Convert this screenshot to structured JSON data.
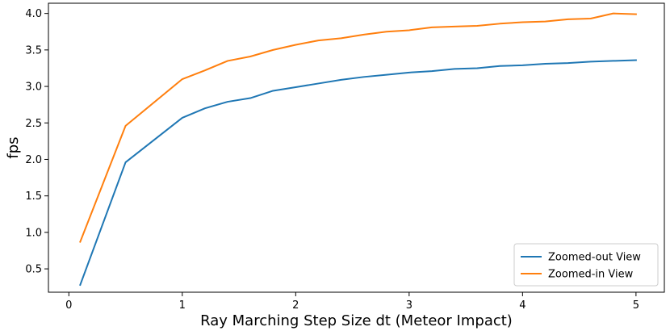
{
  "chart_data": {
    "type": "line",
    "title": "",
    "xlabel": "Ray Marching Step Size dt (Meteor Impact)",
    "ylabel": "fps",
    "xlim": [
      -0.18,
      5.25
    ],
    "ylim": [
      0.18,
      4.14
    ],
    "xticks": [
      0,
      1,
      2,
      3,
      4,
      5
    ],
    "yticks": [
      0.5,
      1.0,
      1.5,
      2.0,
      2.5,
      3.0,
      3.5,
      4.0
    ],
    "xtick_labels": [
      "0",
      "1",
      "2",
      "3",
      "4",
      "5"
    ],
    "ytick_labels": [
      "0.5",
      "1.0",
      "1.5",
      "2.0",
      "2.5",
      "3.0",
      "3.5",
      "4.0"
    ],
    "grid": false,
    "legend_position": "lower-right",
    "x": [
      0.1,
      0.5,
      1.0,
      1.2,
      1.4,
      1.6,
      1.8,
      2.0,
      2.2,
      2.4,
      2.6,
      2.8,
      3.0,
      3.2,
      3.4,
      3.6,
      3.8,
      4.0,
      4.2,
      4.4,
      4.6,
      4.8,
      5.0
    ],
    "series": [
      {
        "name": "Zoomed-out View",
        "color": "#1f77b4",
        "values": [
          0.28,
          1.96,
          2.57,
          2.7,
          2.79,
          2.84,
          2.94,
          2.99,
          3.04,
          3.09,
          3.13,
          3.16,
          3.19,
          3.21,
          3.24,
          3.25,
          3.28,
          3.29,
          3.31,
          3.32,
          3.34,
          3.35,
          3.36
        ]
      },
      {
        "name": "Zoomed-in View",
        "color": "#ff7f0e",
        "values": [
          0.87,
          2.46,
          3.1,
          3.22,
          3.35,
          3.41,
          3.5,
          3.57,
          3.63,
          3.66,
          3.71,
          3.75,
          3.77,
          3.81,
          3.82,
          3.83,
          3.86,
          3.88,
          3.89,
          3.92,
          3.93,
          4.0,
          3.99
        ]
      }
    ]
  }
}
